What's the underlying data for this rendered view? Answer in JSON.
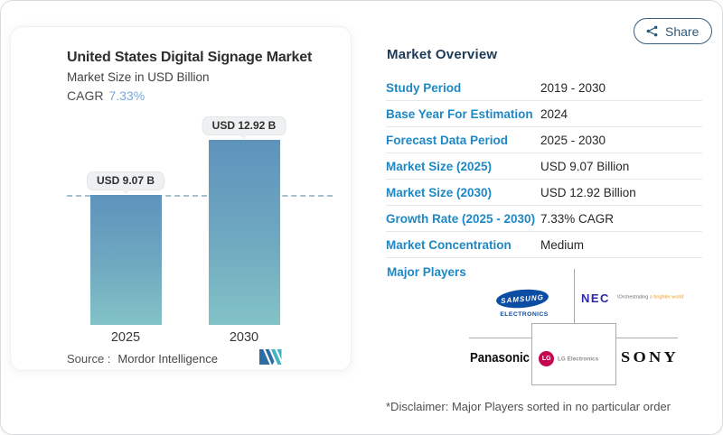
{
  "colors": {
    "accent_blue": "#1e88c5",
    "navy_heading": "#1c3a57",
    "cagr_blue": "#79a9d9",
    "bar_top": "#5e93bc",
    "bar_bottom": "#82c3c6",
    "share": "#2f5a77",
    "samsung_blue": "#0b4da2",
    "nec_blue": "#2d27a8",
    "nec_orange": "#ef9b22",
    "lg_red": "#c5054f",
    "mordor_blue": "#2e6da4",
    "mordor_teal": "#40b3c4"
  },
  "share_button": {
    "label": "Share"
  },
  "chart_card": {
    "title": "United States Digital Signage Market",
    "subtitle": "Market Size in USD Billion",
    "cagr_label": "CAGR",
    "cagr_value": "7.33%",
    "source_label": "Source :",
    "source_name": "Mordor Intelligence"
  },
  "chart_data": {
    "type": "bar",
    "title": "United States Digital Signage Market",
    "ylabel": "Market Size in USD Billion",
    "categories": [
      "2025",
      "2030"
    ],
    "values": [
      9.07,
      12.92
    ],
    "value_labels": [
      "USD 9.07 B",
      "USD 12.92 B"
    ],
    "unit": "USD Billion",
    "cagr_percent": 7.33,
    "reference_line_value": 9.07,
    "ylim": [
      0,
      14
    ],
    "grid": false,
    "legend": false
  },
  "overview": {
    "heading": "Market Overview",
    "rows": [
      {
        "label": "Study Period",
        "value": "2019 - 2030"
      },
      {
        "label": "Base Year For Estimation",
        "value": "2024"
      },
      {
        "label": "Forecast Data Period",
        "value": "2025 - 2030"
      },
      {
        "label": "Market Size (2025)",
        "value": "USD 9.07 Billion"
      },
      {
        "label": "Market Size (2030)",
        "value": "USD 12.92 Billion"
      },
      {
        "label": "Growth Rate (2025 - 2030)",
        "value": "7.33% CAGR"
      },
      {
        "label": "Market Concentration",
        "value": "Medium"
      }
    ],
    "major_players_label": "Major Players",
    "players": {
      "samsung": {
        "name": "Samsung Electronics",
        "wordmark": "SAMSUNG",
        "subtext": "ELECTRONICS"
      },
      "nec": {
        "name": "NEC",
        "wordmark": "NEC",
        "tagline_prefix": "\\Orchestrating ",
        "tagline_accent": "a brighter world"
      },
      "panasonic": {
        "name": "Panasonic",
        "wordmark": "Panasonic"
      },
      "lg": {
        "name": "LG Electronics",
        "monogram": "LG",
        "wordmark": "LG Electronics"
      },
      "sony": {
        "name": "Sony",
        "wordmark": "SONY"
      }
    },
    "disclaimer": "*Disclaimer: Major Players sorted in no particular order"
  }
}
